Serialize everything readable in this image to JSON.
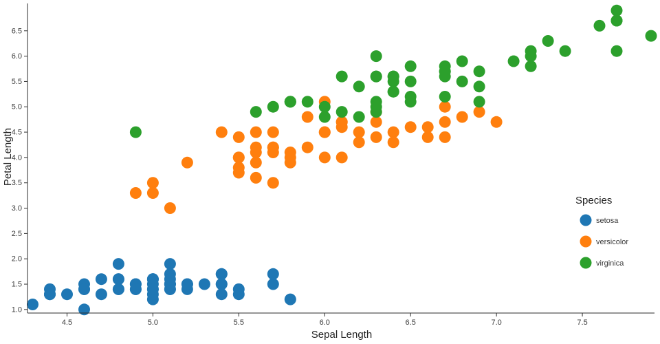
{
  "chart_data": {
    "type": "scatter",
    "title": "",
    "xlabel": "Sepal Length",
    "ylabel": "Petal Length",
    "xlim": [
      4.27,
      7.92
    ],
    "ylim": [
      0.93,
      7.04
    ],
    "grid": false,
    "point_radius_hint": "large solid circles, fully opaque",
    "x_tick_values": [
      4.5,
      5.0,
      5.5,
      6.0,
      6.5,
      7.0,
      7.5
    ],
    "x_tick_labels": [
      "4.5",
      "5.0",
      "5.5",
      "6.0",
      "6.5",
      "7.0",
      "7.5"
    ],
    "y_tick_values": [
      1.0,
      1.5,
      2.0,
      2.5,
      3.0,
      3.5,
      4.0,
      4.5,
      5.0,
      5.5,
      6.0,
      6.5
    ],
    "y_tick_labels": [
      "1.0",
      "1.5",
      "2.0",
      "2.5",
      "3.0",
      "3.5",
      "4.0",
      "4.5",
      "5.0",
      "5.5",
      "6.0",
      "6.5"
    ],
    "legend": {
      "title": "Species",
      "position": "right",
      "entries": [
        "setosa",
        "versicolor",
        "virginica"
      ]
    },
    "series": [
      {
        "name": "setosa",
        "color": "#1f77b4",
        "points": [
          [
            5.1,
            1.4
          ],
          [
            4.9,
            1.4
          ],
          [
            4.7,
            1.3
          ],
          [
            4.6,
            1.5
          ],
          [
            5.0,
            1.4
          ],
          [
            5.4,
            1.7
          ],
          [
            4.6,
            1.4
          ],
          [
            5.0,
            1.5
          ],
          [
            4.4,
            1.4
          ],
          [
            4.9,
            1.5
          ],
          [
            5.4,
            1.5
          ],
          [
            4.8,
            1.6
          ],
          [
            4.8,
            1.4
          ],
          [
            4.3,
            1.1
          ],
          [
            5.8,
            1.2
          ],
          [
            5.7,
            1.5
          ],
          [
            5.4,
            1.3
          ],
          [
            5.1,
            1.4
          ],
          [
            5.7,
            1.7
          ],
          [
            5.1,
            1.5
          ],
          [
            5.4,
            1.7
          ],
          [
            5.1,
            1.5
          ],
          [
            4.6,
            1.0
          ],
          [
            5.1,
            1.7
          ],
          [
            4.8,
            1.9
          ],
          [
            5.0,
            1.6
          ],
          [
            5.0,
            1.6
          ],
          [
            5.2,
            1.5
          ],
          [
            5.2,
            1.4
          ],
          [
            4.7,
            1.6
          ],
          [
            4.8,
            1.6
          ],
          [
            5.4,
            1.5
          ],
          [
            5.2,
            1.5
          ],
          [
            5.5,
            1.4
          ],
          [
            4.9,
            1.5
          ],
          [
            5.0,
            1.2
          ],
          [
            5.5,
            1.3
          ],
          [
            4.9,
            1.4
          ],
          [
            4.4,
            1.3
          ],
          [
            5.1,
            1.5
          ],
          [
            5.0,
            1.3
          ],
          [
            4.5,
            1.3
          ],
          [
            4.4,
            1.3
          ],
          [
            5.0,
            1.6
          ],
          [
            5.1,
            1.9
          ],
          [
            4.8,
            1.4
          ],
          [
            5.1,
            1.6
          ],
          [
            4.6,
            1.4
          ],
          [
            5.3,
            1.5
          ],
          [
            5.0,
            1.4
          ]
        ]
      },
      {
        "name": "versicolor",
        "color": "#ff7f0e",
        "points": [
          [
            7.0,
            4.7
          ],
          [
            6.4,
            4.5
          ],
          [
            6.9,
            4.9
          ],
          [
            5.5,
            4.0
          ],
          [
            6.5,
            4.6
          ],
          [
            5.7,
            4.5
          ],
          [
            6.3,
            4.7
          ],
          [
            4.9,
            3.3
          ],
          [
            6.6,
            4.6
          ],
          [
            5.2,
            3.9
          ],
          [
            5.0,
            3.5
          ],
          [
            5.9,
            4.2
          ],
          [
            6.0,
            4.0
          ],
          [
            6.1,
            4.7
          ],
          [
            5.6,
            3.6
          ],
          [
            6.7,
            4.4
          ],
          [
            5.6,
            4.5
          ],
          [
            5.8,
            4.1
          ],
          [
            6.2,
            4.5
          ],
          [
            5.6,
            3.9
          ],
          [
            5.9,
            4.8
          ],
          [
            6.1,
            4.0
          ],
          [
            6.3,
            4.9
          ],
          [
            6.1,
            4.7
          ],
          [
            6.4,
            4.3
          ],
          [
            6.6,
            4.4
          ],
          [
            6.8,
            4.8
          ],
          [
            6.7,
            5.0
          ],
          [
            6.0,
            4.5
          ],
          [
            5.7,
            3.5
          ],
          [
            5.5,
            3.8
          ],
          [
            5.5,
            3.7
          ],
          [
            5.8,
            3.9
          ],
          [
            6.0,
            5.1
          ],
          [
            5.4,
            4.5
          ],
          [
            6.0,
            4.5
          ],
          [
            6.7,
            4.7
          ],
          [
            6.3,
            4.4
          ],
          [
            5.6,
            4.1
          ],
          [
            5.5,
            4.0
          ],
          [
            5.5,
            4.4
          ],
          [
            6.1,
            4.6
          ],
          [
            5.8,
            4.0
          ],
          [
            5.0,
            3.3
          ],
          [
            5.6,
            4.2
          ],
          [
            5.7,
            4.2
          ],
          [
            5.7,
            4.2
          ],
          [
            6.2,
            4.3
          ],
          [
            5.1,
            3.0
          ],
          [
            5.7,
            4.1
          ]
        ]
      },
      {
        "name": "virginica",
        "color": "#2ca02c",
        "points": [
          [
            6.3,
            6.0
          ],
          [
            5.8,
            5.1
          ],
          [
            7.1,
            5.9
          ],
          [
            6.3,
            5.6
          ],
          [
            6.5,
            5.8
          ],
          [
            7.6,
            6.6
          ],
          [
            4.9,
            4.5
          ],
          [
            7.3,
            6.3
          ],
          [
            6.7,
            5.8
          ],
          [
            7.2,
            6.1
          ],
          [
            6.5,
            5.1
          ],
          [
            6.4,
            5.3
          ],
          [
            6.8,
            5.5
          ],
          [
            5.7,
            5.0
          ],
          [
            5.8,
            5.1
          ],
          [
            6.4,
            5.3
          ],
          [
            6.5,
            5.5
          ],
          [
            7.7,
            6.7
          ],
          [
            7.7,
            6.9
          ],
          [
            6.0,
            5.0
          ],
          [
            6.9,
            5.7
          ],
          [
            5.6,
            4.9
          ],
          [
            7.7,
            6.7
          ],
          [
            6.3,
            4.9
          ],
          [
            6.7,
            5.7
          ],
          [
            7.2,
            6.0
          ],
          [
            6.2,
            4.8
          ],
          [
            6.1,
            4.9
          ],
          [
            6.4,
            5.6
          ],
          [
            7.2,
            5.8
          ],
          [
            7.4,
            6.1
          ],
          [
            7.9,
            6.4
          ],
          [
            6.4,
            5.6
          ],
          [
            6.3,
            5.1
          ],
          [
            6.1,
            5.6
          ],
          [
            7.7,
            6.1
          ],
          [
            6.3,
            5.6
          ],
          [
            6.4,
            5.5
          ],
          [
            6.0,
            4.8
          ],
          [
            6.9,
            5.4
          ],
          [
            6.7,
            5.6
          ],
          [
            6.9,
            5.1
          ],
          [
            5.8,
            5.1
          ],
          [
            6.8,
            5.9
          ],
          [
            6.7,
            5.7
          ],
          [
            6.7,
            5.2
          ],
          [
            6.3,
            5.0
          ],
          [
            6.5,
            5.2
          ],
          [
            6.2,
            5.4
          ],
          [
            5.9,
            5.1
          ]
        ]
      }
    ]
  }
}
